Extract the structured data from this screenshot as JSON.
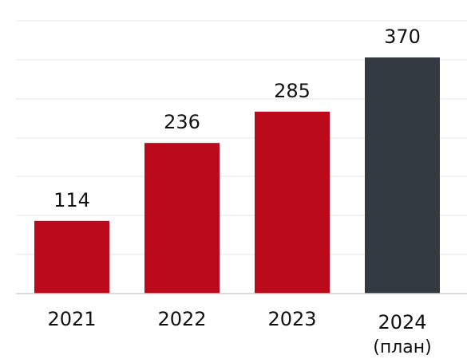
{
  "chart_data": {
    "type": "bar",
    "categories": [
      "2021",
      "2022",
      "2023",
      "2024"
    ],
    "category_notes": [
      "",
      "",
      "",
      "(план)"
    ],
    "values": [
      114,
      236,
      285,
      370
    ],
    "bar_colors": [
      "#bb0a1b",
      "#bb0a1b",
      "#bb0a1b",
      "#323940"
    ],
    "data_labels": [
      "114",
      "236",
      "285",
      "370"
    ],
    "ylim": [
      0,
      400
    ],
    "grid": true,
    "title": "",
    "xlabel": "",
    "ylabel": ""
  }
}
